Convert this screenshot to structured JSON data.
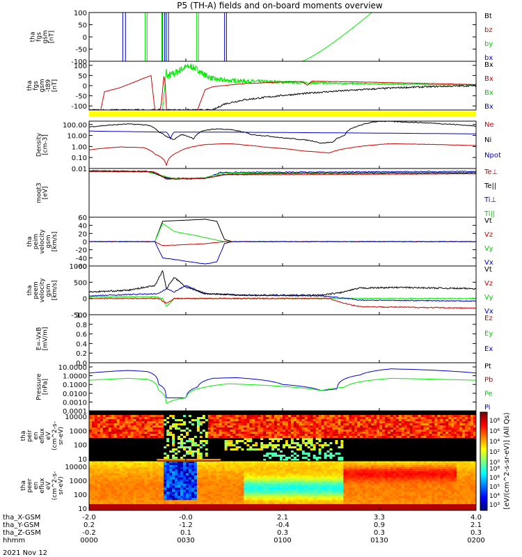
{
  "title": "P5 (TH-A) fields and on-board moments overview",
  "date_label": "2021 Nov 12",
  "chart_data": [
    {
      "type": "line",
      "ylabel": [
        "tha",
        "fgs",
        "gsm",
        "[nT]"
      ],
      "ylim": [
        -100,
        100
      ],
      "yticks": [
        100,
        50,
        0,
        -50,
        -100
      ],
      "legend": [
        {
          "label": "Bt",
          "color": "#000000"
        },
        {
          "label": "bz",
          "color": "#cc0000"
        },
        {
          "label": "by",
          "color": "#00cc00"
        },
        {
          "label": "bx",
          "color": "#0000cc"
        }
      ]
    },
    {
      "type": "line",
      "ylabel": [
        "tha",
        "fgs",
        "gsm",
        "-t89",
        "[nT]"
      ],
      "ylim": [
        -120,
        120
      ],
      "yticks": [
        100,
        50,
        0,
        -50,
        -100
      ],
      "legend": [
        {
          "label": "Bx",
          "color": "#000000"
        },
        {
          "label": "Bx",
          "color": "#cc0000"
        },
        {
          "label": "Bx",
          "color": "#00cc00"
        },
        {
          "label": "Bx",
          "color": "#0000cc"
        }
      ]
    },
    {
      "type": "line",
      "ylabel": [
        "Density",
        "[cm-3]"
      ],
      "scale": "log",
      "ylim": [
        0.01,
        200
      ],
      "yticks": [
        100.0,
        10.0,
        1.0,
        0.1,
        0.01
      ],
      "ytick_labels": [
        "100.00",
        "10.00",
        "1.00",
        "0.10",
        "0.01"
      ],
      "legend": [
        {
          "label": "Ne",
          "color": "#cc0000"
        },
        {
          "label": "Ni",
          "color": "#000000"
        },
        {
          "label": "Npot",
          "color": "#0000cc"
        }
      ]
    },
    {
      "type": "line",
      "ylabel": [
        "moqt3",
        "[eV]"
      ],
      "scale": "log",
      "legend": [
        {
          "label": "Te⊥",
          "color": "#cc0000"
        },
        {
          "label": "Te||",
          "color": "#000000"
        },
        {
          "label": "Ti⊥",
          "color": "#0000cc"
        },
        {
          "label": "Ti||",
          "color": "#00cc00"
        }
      ]
    },
    {
      "type": "line",
      "ylabel": [
        "tha",
        "peim",
        "velocity",
        "gsm",
        "[km/s]"
      ],
      "ylim": [
        -60,
        60
      ],
      "yticks": [
        60,
        40,
        20,
        0,
        -20,
        -40,
        -60
      ],
      "legend": [
        {
          "label": "Vt",
          "color": "#000000"
        },
        {
          "label": "Vz",
          "color": "#cc0000"
        },
        {
          "label": "Vy",
          "color": "#00cc00"
        },
        {
          "label": "Vx",
          "color": "#0000cc"
        }
      ]
    },
    {
      "type": "line",
      "ylabel": [
        "tha",
        "peem",
        "velocity",
        "gsm",
        "[km/s]"
      ],
      "ylim": [
        -500,
        1000
      ],
      "yticks": [
        1000,
        500,
        0,
        -500
      ],
      "legend": [
        {
          "label": "Vt",
          "color": "#000000"
        },
        {
          "label": "Vz",
          "color": "#cc0000"
        },
        {
          "label": "Vy",
          "color": "#00cc00"
        },
        {
          "label": "Vx",
          "color": "#0000cc"
        }
      ]
    },
    {
      "type": "line",
      "ylabel": [
        "E=-VxB",
        "[mV/m]"
      ],
      "ylim": [
        0.0,
        1.0
      ],
      "yticks": [
        1.0,
        0.8,
        0.6,
        0.4,
        0.2,
        0.0
      ],
      "ytick_labels": [
        "1.0",
        "0.8",
        "0.6",
        "0.4",
        "0.2",
        "0.0"
      ],
      "legend": [
        {
          "label": "Ez",
          "color": "#cc0000"
        },
        {
          "label": "Ey",
          "color": "#00cc00"
        },
        {
          "label": "Ex",
          "color": "#0000cc"
        }
      ]
    },
    {
      "type": "line",
      "ylabel": [
        "Pressure",
        "[nPa]"
      ],
      "scale": "log",
      "ylim": [
        0.0001,
        30
      ],
      "yticks": [
        10.0,
        1.0,
        0.1,
        0.01,
        0.001,
        0.0001
      ],
      "ytick_labels": [
        "10.0000",
        "1.0000",
        "0.1000",
        "0.0100",
        "0.0010",
        "0.0001"
      ],
      "legend": [
        {
          "label": "Pt",
          "color": "#000000"
        },
        {
          "label": "Pb",
          "color": "#cc0000"
        },
        {
          "label": "Pe",
          "color": "#00cc00"
        },
        {
          "label": "Pi",
          "color": "#0000cc"
        }
      ]
    },
    {
      "type": "heatmap",
      "ylabel": [
        "tha",
        "peir",
        "en",
        "eflux",
        "eV",
        "(cm^2-s-",
        "sr-eV)"
      ],
      "scale": "log",
      "ylim": [
        7,
        25000
      ],
      "yticks": [
        10000,
        1000,
        100,
        10
      ],
      "ytick_labels": [
        "10000",
        "1000",
        "100",
        "10"
      ]
    },
    {
      "type": "heatmap",
      "ylabel": [
        "tha",
        "peer",
        "en",
        "eflux",
        "eV",
        "(cm^2-s-",
        "sr-eV)"
      ],
      "scale": "log",
      "ylim": [
        7,
        25000
      ],
      "yticks": [
        10000,
        1000,
        100,
        10
      ],
      "ytick_labels": [
        "10000",
        "1000",
        "100",
        "10"
      ]
    }
  ],
  "colorbar": {
    "label": "[eV/(cm^2-s-sr-eV)] (All Qs)",
    "top_ticks": [
      "10⁸",
      "10⁶",
      "10⁴",
      "10²",
      "10⁰"
    ],
    "bottom_ticks": [
      "10⁸",
      "10⁶",
      "10⁵",
      "10⁴",
      "10³"
    ]
  },
  "x_axis": {
    "rows": [
      {
        "label": "tha_X-GSM",
        "values": [
          "-2.0",
          "-0.0",
          "2.1",
          "3.3",
          "4.0"
        ]
      },
      {
        "label": "tha_Y-GSM",
        "values": [
          "0.2",
          "-1.2",
          "-0.4",
          "0.9",
          "2.1"
        ]
      },
      {
        "label": "tha_Z-GSM",
        "values": [
          "-0.2",
          "0.1",
          "0.3",
          "0.3",
          "0.3"
        ]
      },
      {
        "label": "hhmm",
        "values": [
          "0000",
          "0030",
          "0100",
          "0130",
          "0200"
        ]
      }
    ],
    "tick_minutes": [
      0,
      30,
      60,
      90,
      120
    ]
  }
}
